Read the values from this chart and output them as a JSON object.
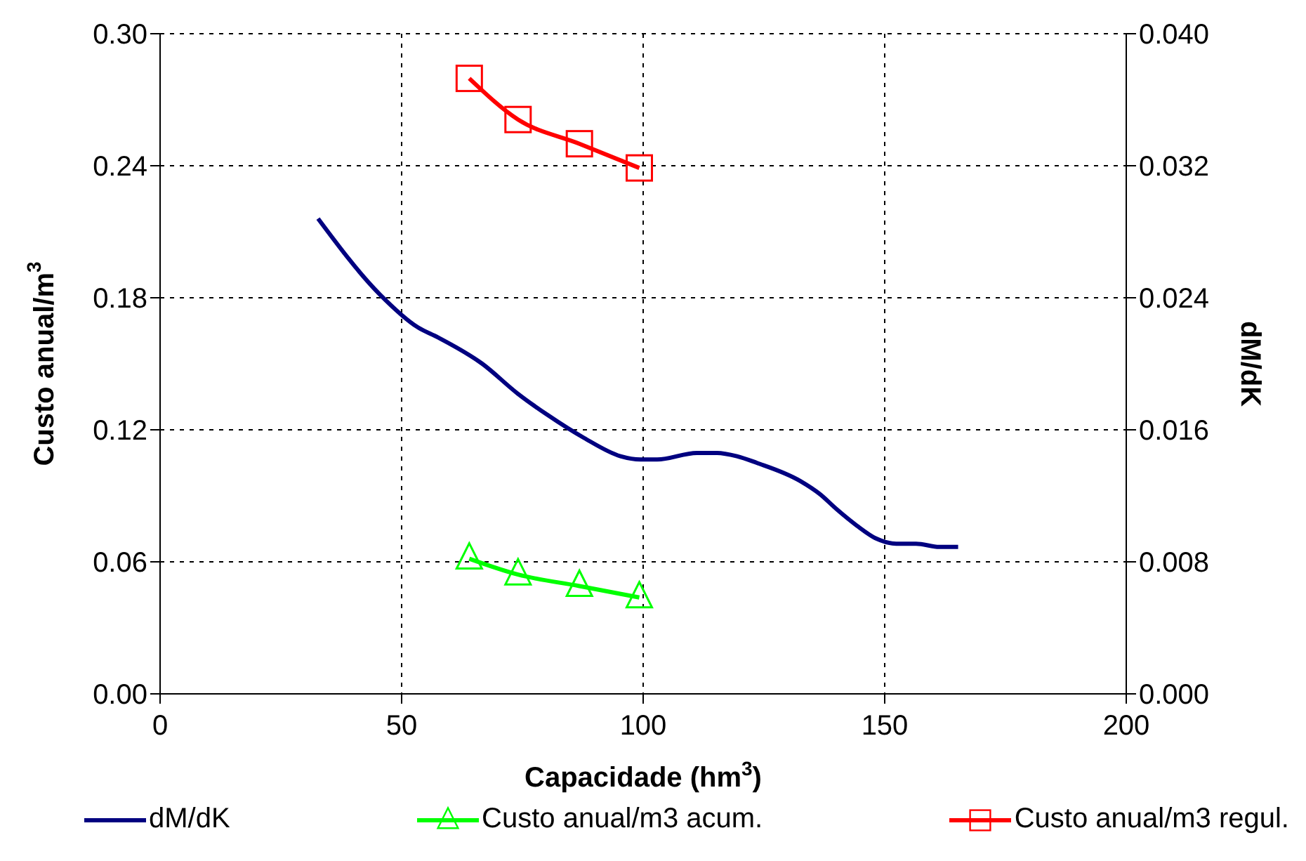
{
  "chart_data": {
    "type": "line",
    "xlabel": "Capacidade (hm$^{3}$)",
    "ylabel": "Custo anual/m$^{3}$",
    "y2label": "dM/dK",
    "xlim": [
      0,
      200
    ],
    "xticks": [
      0,
      50,
      100,
      150,
      200
    ],
    "ylim": [
      0,
      0.3
    ],
    "yticks": [
      {
        "value": 0,
        "label": "0.00"
      },
      {
        "value": 0.06,
        "label": "0.06"
      },
      {
        "value": 0.12,
        "label": "0.12"
      },
      {
        "value": 0.18,
        "label": "0.18"
      },
      {
        "value": 0.24,
        "label": "0.24"
      },
      {
        "value": 0.3,
        "label": "0.30"
      }
    ],
    "y2lim": [
      0,
      0.04
    ],
    "y2ticks": [
      {
        "value": 0,
        "label": "0.000"
      },
      {
        "value": 0.008,
        "label": "0.008"
      },
      {
        "value": 0.016,
        "label": "0.016"
      },
      {
        "value": 0.024,
        "label": "0.024"
      },
      {
        "value": 0.032,
        "label": "0.032"
      },
      {
        "value": 0.04,
        "label": "0.040"
      }
    ],
    "grid": true,
    "legend": "bottom",
    "line_style": "solid",
    "series": [
      {
        "name": "dM/dK",
        "color": "#000080",
        "axis": "y2",
        "marker": "none",
        "x": [
          32.7,
          45.5,
          53.4,
          57.5,
          66.7,
          74.0,
          80.2,
          87.8,
          95.3,
          99.4,
          102.9,
          111.1,
          115.3,
          119.4,
          123.5,
          132.5,
          136.6,
          140.0,
          144.2,
          148.3,
          152.4,
          156.5,
          161.3,
          165.2
        ],
        "values": [
          0.0288,
          0.0242,
          0.0222,
          0.0216,
          0.02,
          0.0182,
          0.0169,
          0.0155,
          0.0144,
          0.0142,
          0.0142,
          0.0146,
          0.0146,
          0.0144,
          0.014,
          0.0129,
          0.0121,
          0.0112,
          0.0102,
          0.0094,
          0.0091,
          0.0091,
          0.0089,
          0.0089
        ]
      },
      {
        "name": "Custo anual/m3 acum.",
        "color": "#00ff00",
        "marker": "triangle",
        "x": [
          64.0,
          74.1,
          86.8,
          99.2
        ],
        "values": [
          0.0614,
          0.0542,
          0.049,
          0.0438
        ]
      },
      {
        "name": "Custo anual/m3 regul.",
        "color": "#ff0000",
        "marker": "square",
        "x": [
          64.0,
          74.1,
          86.8,
          99.2
        ],
        "values": [
          0.2797,
          0.261,
          0.25,
          0.239
        ]
      }
    ]
  }
}
